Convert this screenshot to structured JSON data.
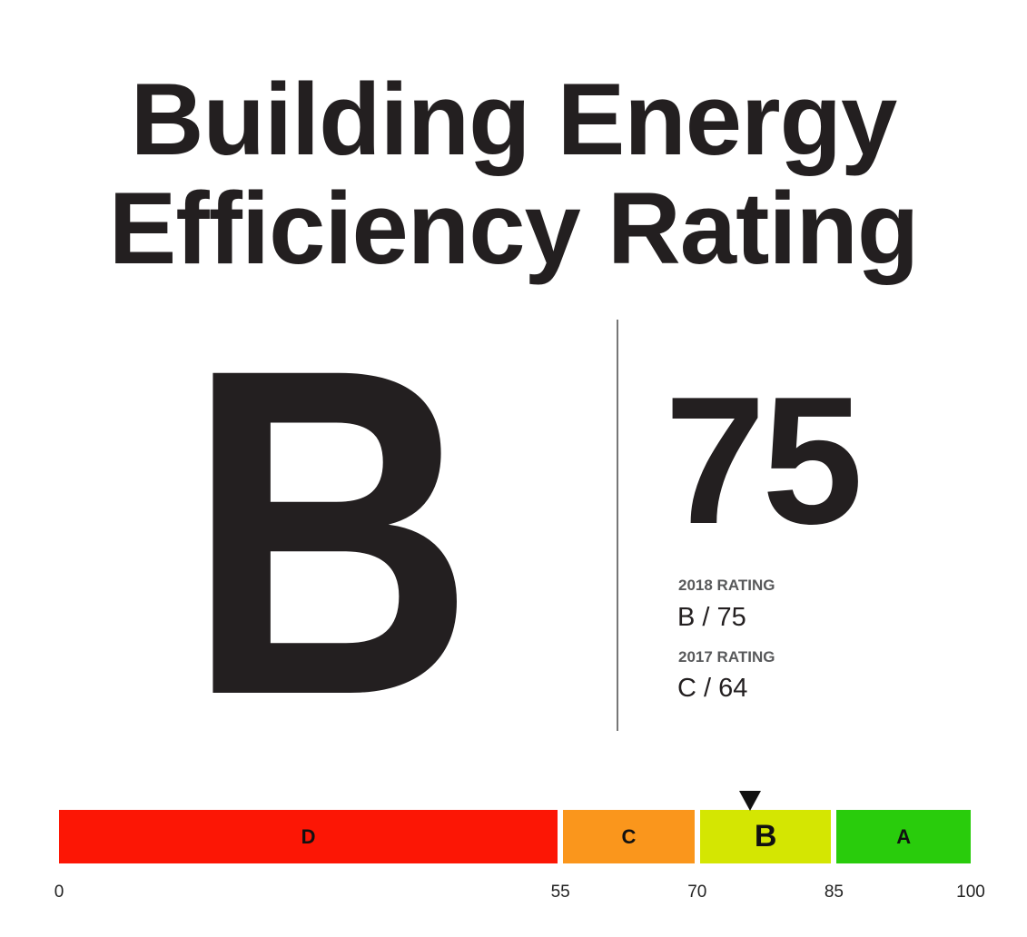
{
  "title_lines": [
    "Building Energy",
    "Efficiency Rating"
  ],
  "current": {
    "grade": "B",
    "score": "75"
  },
  "history": [
    {
      "label": "2018 RATING",
      "value": "B / 75"
    },
    {
      "label": "2017 RATING",
      "value": "C / 64"
    }
  ],
  "scale": {
    "segments": [
      {
        "grade": "D",
        "from": 0,
        "to": 55,
        "color": "#fc1605"
      },
      {
        "grade": "C",
        "from": 55,
        "to": 70,
        "color": "#fa961c"
      },
      {
        "grade": "B",
        "from": 70,
        "to": 85,
        "color": "#d4e602"
      },
      {
        "grade": "A",
        "from": 85,
        "to": 100,
        "color": "#29cc0c"
      }
    ],
    "ticks": [
      "0",
      "55",
      "70",
      "85",
      "100"
    ],
    "marker_value": 75
  }
}
